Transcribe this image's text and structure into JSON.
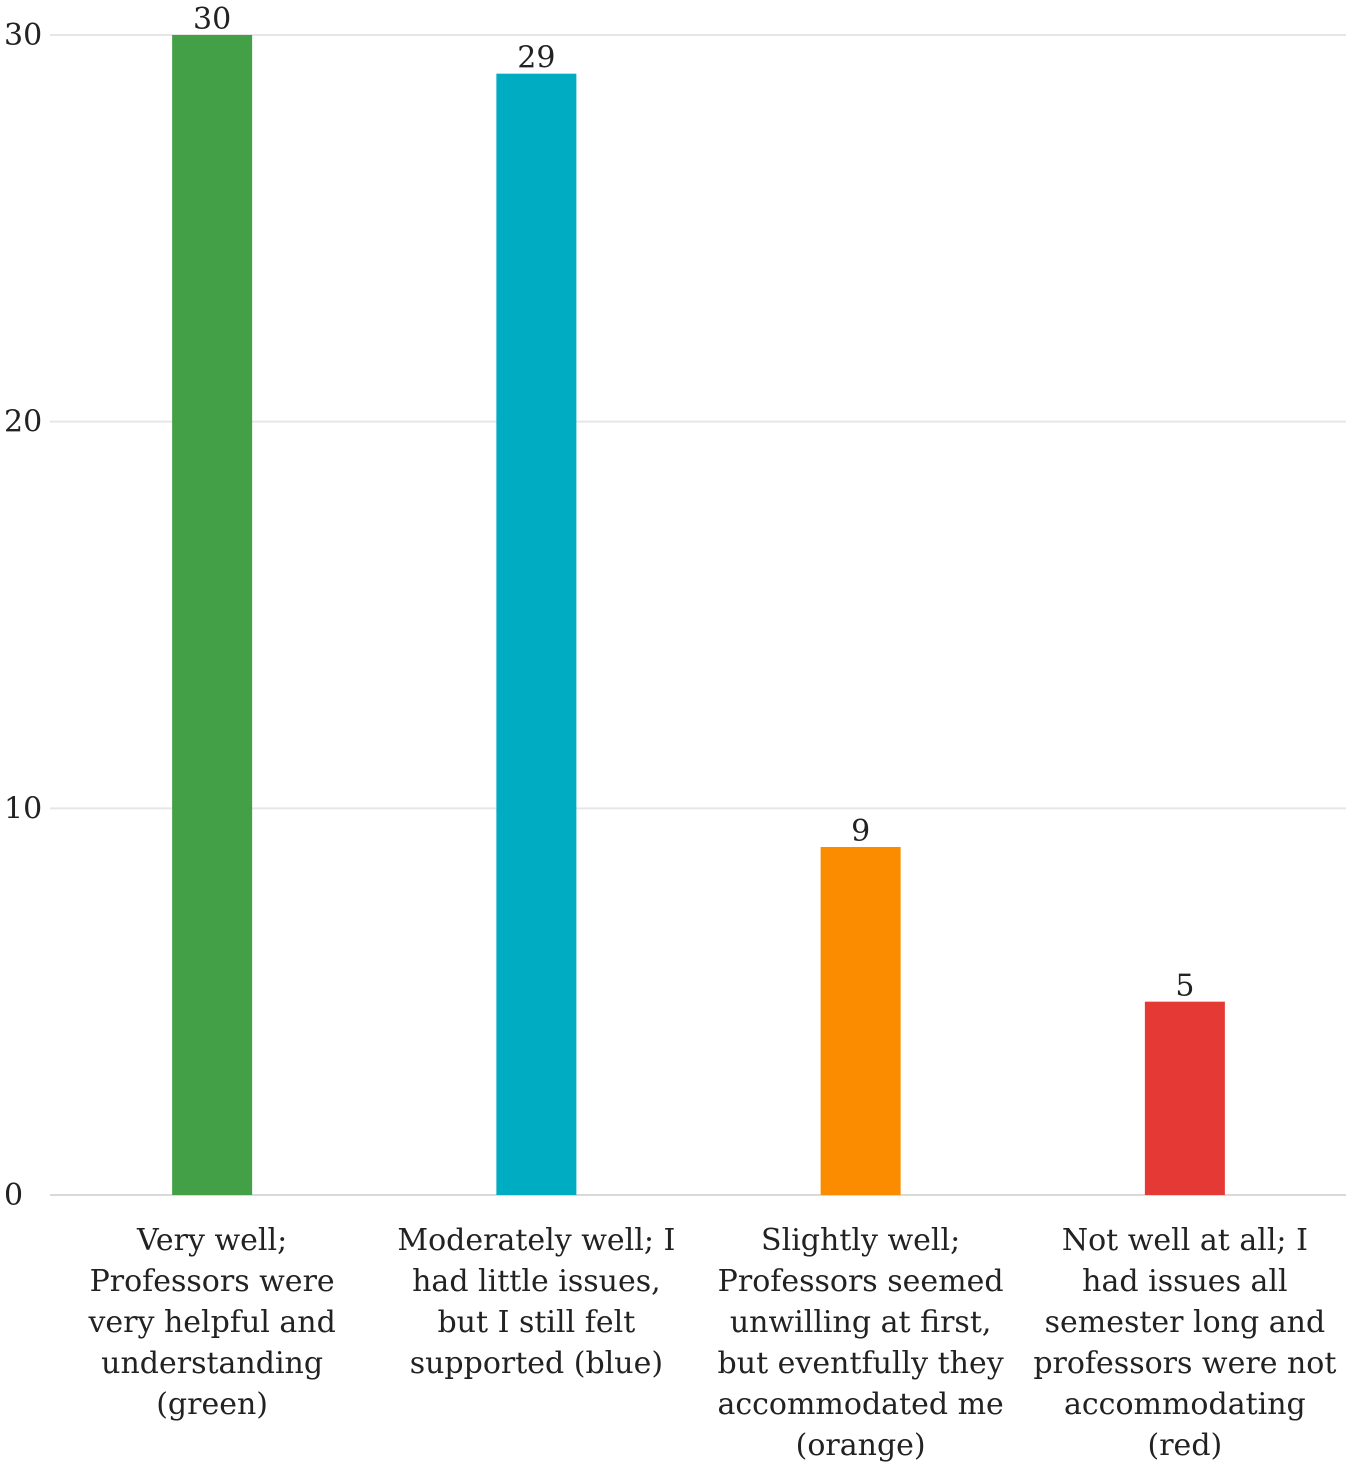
{
  "chart_data": {
    "type": "bar",
    "title": "",
    "xlabel": "",
    "ylabel": "",
    "ylim": [
      0,
      30
    ],
    "yticks": [
      0,
      10,
      20,
      30
    ],
    "grid": true,
    "categories": [
      [
        "Very well;",
        "Professors were",
        "very helpful and",
        "understanding",
        "(green)"
      ],
      [
        "Moderately well; I",
        "had little issues,",
        "but I still felt",
        "supported (blue)"
      ],
      [
        "Slightly well;",
        "Professors seemed",
        "unwilling at first,",
        "but eventfully they",
        "accommodated me",
        "(orange)"
      ],
      [
        "Not well at all; I",
        "had issues all",
        "semester long and",
        "professors were not",
        "accommodating",
        "(red)"
      ]
    ],
    "values": [
      30,
      29,
      9,
      5
    ],
    "colors": [
      "#43a047",
      "#00acc1",
      "#fb8c00",
      "#e53935"
    ]
  }
}
